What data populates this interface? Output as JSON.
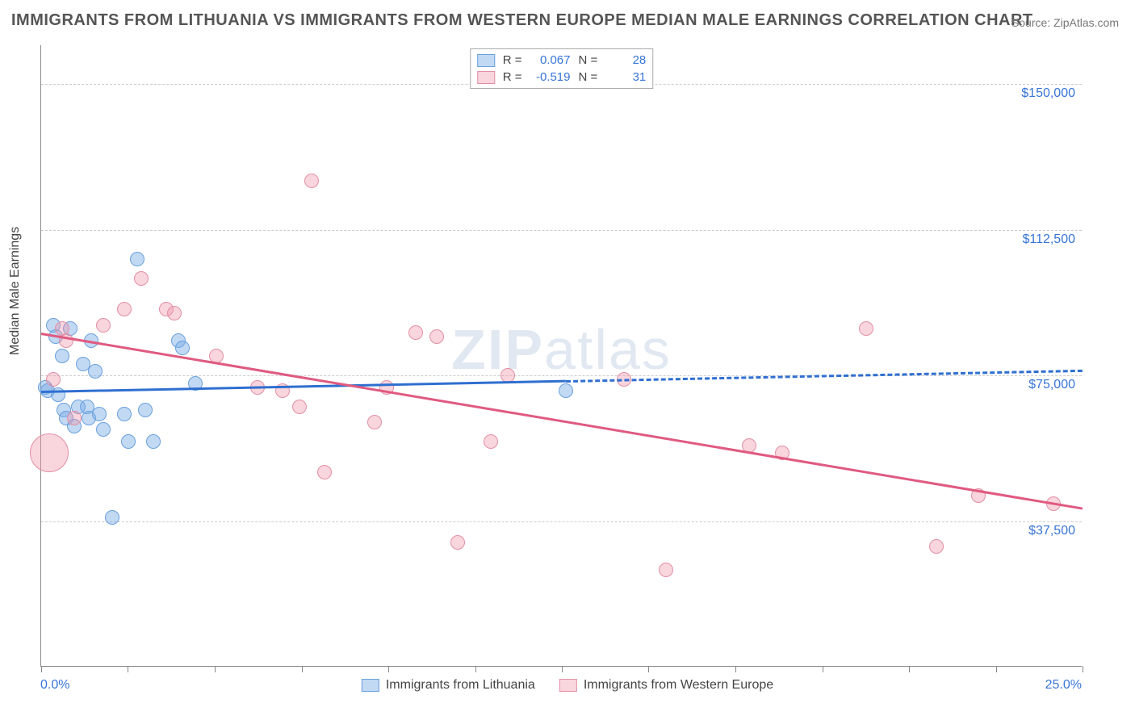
{
  "title": "IMMIGRANTS FROM LITHUANIA VS IMMIGRANTS FROM WESTERN EUROPE MEDIAN MALE EARNINGS CORRELATION CHART",
  "source": "Source: ZipAtlas.com",
  "watermark_left": "ZIP",
  "watermark_right": "atlas",
  "yaxis_title": "Median Male Earnings",
  "chart": {
    "type": "scatter",
    "xlim": [
      0,
      25
    ],
    "ylim": [
      0,
      160000
    ],
    "x_tick_positions": [
      0,
      2.08,
      4.17,
      6.25,
      8.33,
      10.42,
      12.5,
      14.58,
      16.67,
      18.75,
      20.83,
      22.92,
      25
    ],
    "y_gridlines": [
      37500,
      75000,
      112500,
      150000
    ],
    "y_labels": [
      "$37,500",
      "$75,000",
      "$112,500",
      "$150,000"
    ],
    "x_label_start": "0.0%",
    "x_label_end": "25.0%",
    "background_color": "#ffffff",
    "grid_color": "#cccccc",
    "axis_color": "#888888"
  },
  "series": [
    {
      "name": "Immigrants from Lithuania",
      "fill": "rgba(120,170,230,0.45)",
      "stroke": "#6aa0dd",
      "trend_color": "#2f6fd0",
      "r_value": "0.067",
      "n_value": "28",
      "trend": {
        "x1": 0,
        "y1": 71000,
        "x2": 25,
        "y2": 76500,
        "solid_until_x": 12.6
      },
      "points": [
        {
          "x": 0.1,
          "y": 72000,
          "r": 9
        },
        {
          "x": 0.15,
          "y": 71000,
          "r": 9
        },
        {
          "x": 0.3,
          "y": 88000,
          "r": 9
        },
        {
          "x": 0.35,
          "y": 85000,
          "r": 9
        },
        {
          "x": 0.4,
          "y": 70000,
          "r": 9
        },
        {
          "x": 0.5,
          "y": 80000,
          "r": 9
        },
        {
          "x": 0.55,
          "y": 66000,
          "r": 9
        },
        {
          "x": 0.6,
          "y": 64000,
          "r": 9
        },
        {
          "x": 0.7,
          "y": 87000,
          "r": 9
        },
        {
          "x": 0.8,
          "y": 62000,
          "r": 9
        },
        {
          "x": 0.9,
          "y": 67000,
          "r": 9
        },
        {
          "x": 1.0,
          "y": 78000,
          "r": 9
        },
        {
          "x": 1.1,
          "y": 67000,
          "r": 9
        },
        {
          "x": 1.15,
          "y": 64000,
          "r": 9
        },
        {
          "x": 1.2,
          "y": 84000,
          "r": 9
        },
        {
          "x": 1.3,
          "y": 76000,
          "r": 9
        },
        {
          "x": 1.4,
          "y": 65000,
          "r": 9
        },
        {
          "x": 1.5,
          "y": 61000,
          "r": 9
        },
        {
          "x": 1.7,
          "y": 38500,
          "r": 9
        },
        {
          "x": 2.0,
          "y": 65000,
          "r": 9
        },
        {
          "x": 2.1,
          "y": 58000,
          "r": 9
        },
        {
          "x": 2.3,
          "y": 105000,
          "r": 9
        },
        {
          "x": 2.5,
          "y": 66000,
          "r": 9
        },
        {
          "x": 2.7,
          "y": 58000,
          "r": 9
        },
        {
          "x": 3.3,
          "y": 84000,
          "r": 9
        },
        {
          "x": 3.4,
          "y": 82000,
          "r": 9
        },
        {
          "x": 3.7,
          "y": 73000,
          "r": 9
        },
        {
          "x": 12.6,
          "y": 71000,
          "r": 9
        }
      ]
    },
    {
      "name": "Immigrants from Western Europe",
      "fill": "rgba(240,150,170,0.40)",
      "stroke": "#e290a5",
      "trend_color": "#e05a80",
      "r_value": "-0.519",
      "n_value": "31",
      "trend": {
        "x1": 0,
        "y1": 86000,
        "x2": 25,
        "y2": 41000,
        "solid_until_x": 25
      },
      "points": [
        {
          "x": 0.2,
          "y": 55000,
          "r": 24
        },
        {
          "x": 0.3,
          "y": 74000,
          "r": 9
        },
        {
          "x": 0.5,
          "y": 87000,
          "r": 9
        },
        {
          "x": 0.6,
          "y": 84000,
          "r": 9
        },
        {
          "x": 0.8,
          "y": 64000,
          "r": 9
        },
        {
          "x": 1.5,
          "y": 88000,
          "r": 9
        },
        {
          "x": 2.0,
          "y": 92000,
          "r": 9
        },
        {
          "x": 2.4,
          "y": 100000,
          "r": 9
        },
        {
          "x": 3.0,
          "y": 92000,
          "r": 9
        },
        {
          "x": 3.2,
          "y": 91000,
          "r": 9
        },
        {
          "x": 4.2,
          "y": 80000,
          "r": 9
        },
        {
          "x": 5.2,
          "y": 72000,
          "r": 9
        },
        {
          "x": 5.8,
          "y": 71000,
          "r": 9
        },
        {
          "x": 6.2,
          "y": 67000,
          "r": 9
        },
        {
          "x": 6.5,
          "y": 125000,
          "r": 9
        },
        {
          "x": 6.8,
          "y": 50000,
          "r": 9
        },
        {
          "x": 8.0,
          "y": 63000,
          "r": 9
        },
        {
          "x": 8.3,
          "y": 72000,
          "r": 9
        },
        {
          "x": 9.0,
          "y": 86000,
          "r": 9
        },
        {
          "x": 9.5,
          "y": 85000,
          "r": 9
        },
        {
          "x": 10.0,
          "y": 32000,
          "r": 9
        },
        {
          "x": 10.8,
          "y": 58000,
          "r": 9
        },
        {
          "x": 11.2,
          "y": 75000,
          "r": 9
        },
        {
          "x": 14.0,
          "y": 74000,
          "r": 9
        },
        {
          "x": 15.0,
          "y": 25000,
          "r": 9
        },
        {
          "x": 17.0,
          "y": 57000,
          "r": 9
        },
        {
          "x": 17.8,
          "y": 55000,
          "r": 9
        },
        {
          "x": 19.8,
          "y": 87000,
          "r": 9
        },
        {
          "x": 21.5,
          "y": 31000,
          "r": 9
        },
        {
          "x": 22.5,
          "y": 44000,
          "r": 9
        },
        {
          "x": 24.3,
          "y": 42000,
          "r": 9
        }
      ]
    }
  ],
  "legend_labels": {
    "r": "R  =",
    "n": "N  ="
  }
}
